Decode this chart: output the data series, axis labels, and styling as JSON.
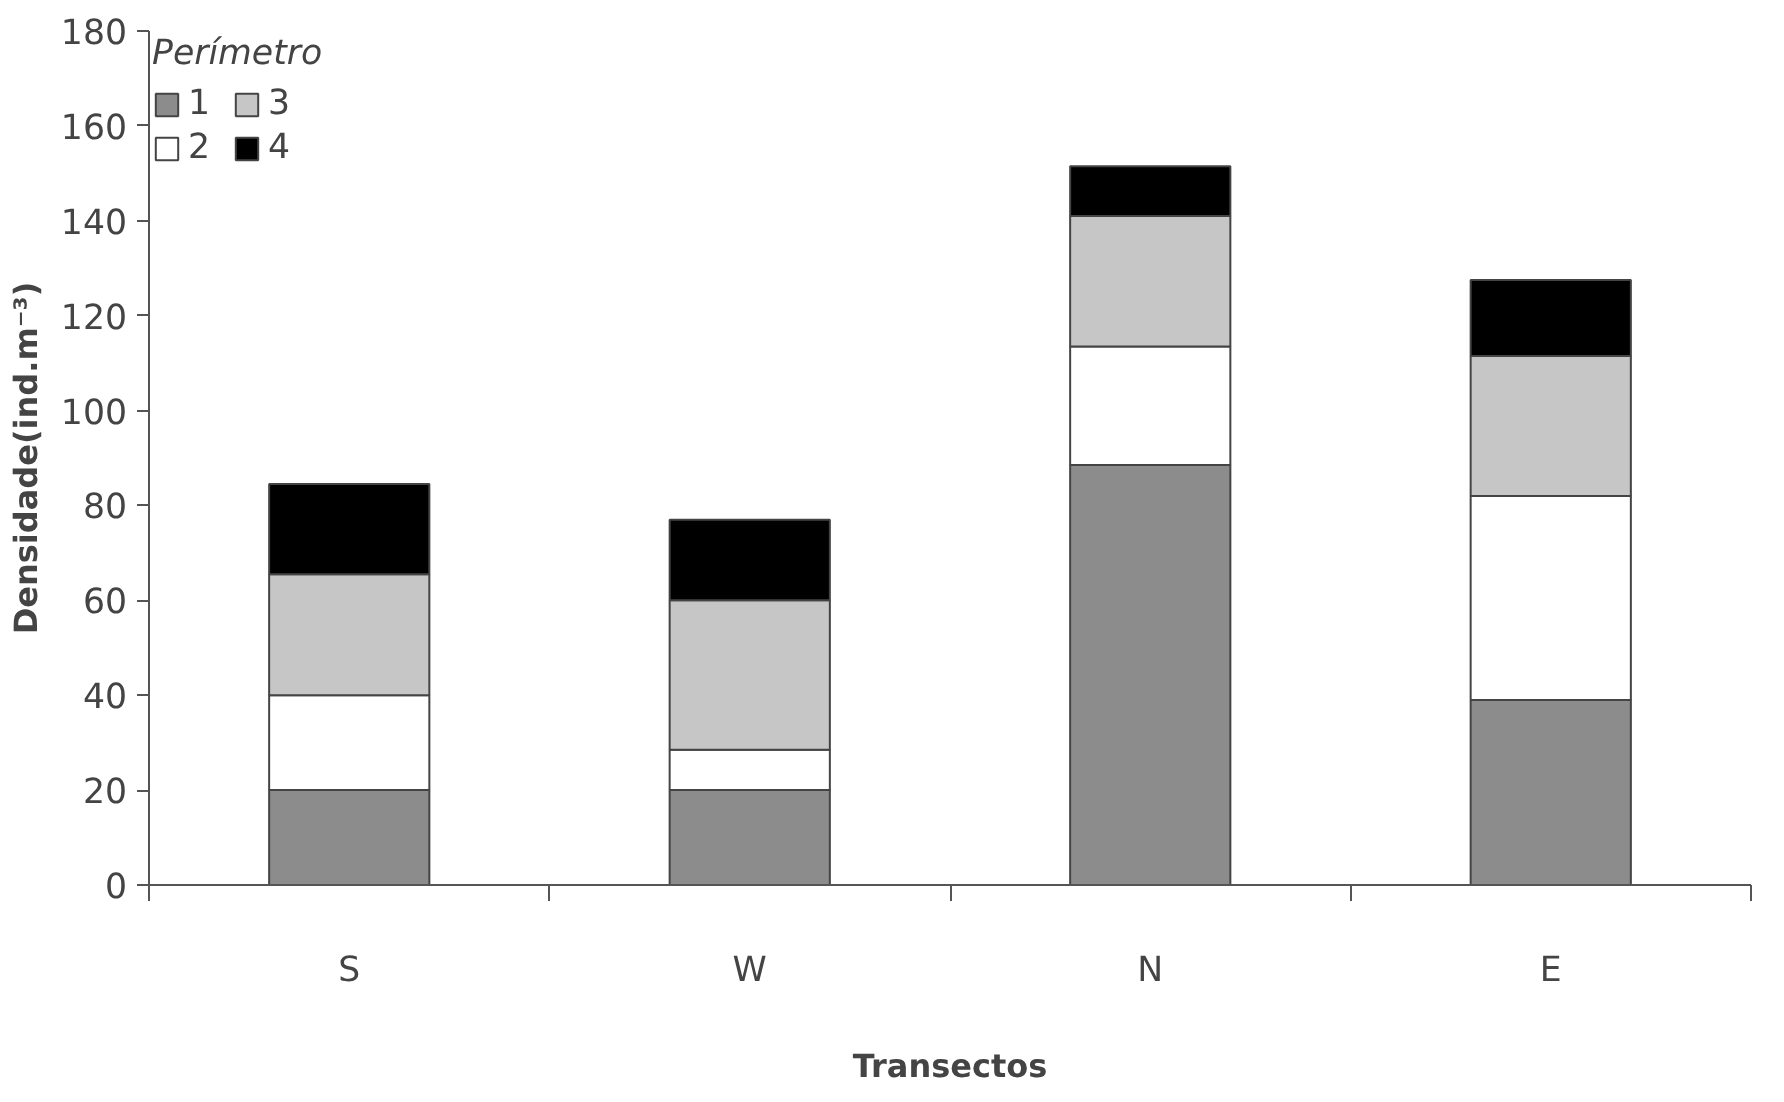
{
  "chart_data": {
    "type": "bar",
    "stacked": true,
    "xlabel": "Transectos",
    "ylabel": "Densidade(ind.m⁻³)",
    "legend_title": "Perímetro",
    "legend": "top left",
    "grid": false,
    "categories": [
      "S",
      "W",
      "N",
      "E"
    ],
    "ylim": [
      0,
      180
    ],
    "yticks": [
      0,
      20,
      40,
      60,
      80,
      100,
      120,
      140,
      160,
      180
    ],
    "series": [
      {
        "name": "1",
        "color": "#8c8c8c",
        "values": [
          20,
          20,
          88.5,
          39
        ]
      },
      {
        "name": "2",
        "color": "#ffffff",
        "values": [
          20,
          8.5,
          25,
          43
        ]
      },
      {
        "name": "3",
        "color": "#c6c6c6",
        "values": [
          25.5,
          31.5,
          27.5,
          29.5
        ]
      },
      {
        "name": "4",
        "color": "#000000",
        "values": [
          19,
          17,
          10.5,
          16
        ]
      }
    ]
  }
}
